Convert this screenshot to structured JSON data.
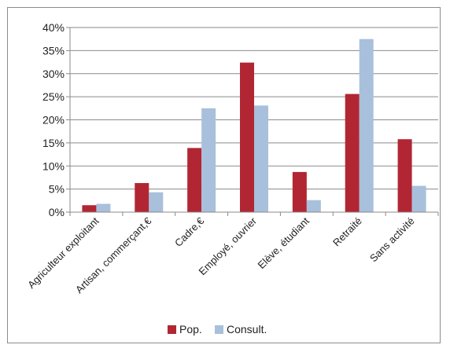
{
  "chart_data": {
    "type": "bar",
    "categories": [
      "Agriculteur exploitant",
      "Artisan, commerçant,€",
      "Cadre,€",
      "Employé, ouvrier",
      "Elève, étudiant",
      "Retraité",
      "Sans activité"
    ],
    "series": [
      {
        "name": "Pop.",
        "color": "#b22633",
        "values": [
          1.5,
          6.3,
          13.9,
          32.4,
          8.7,
          25.6,
          15.8
        ]
      },
      {
        "name": "Consult.",
        "color": "#a8c0db",
        "values": [
          1.8,
          4.3,
          22.5,
          23.1,
          2.6,
          37.5,
          5.7
        ]
      }
    ],
    "ylim": [
      0,
      40
    ],
    "yticks": [
      0,
      5,
      10,
      15,
      20,
      25,
      30,
      35,
      40
    ],
    "ytick_labels": [
      "0%",
      "5%",
      "10%",
      "15%",
      "20%",
      "25%",
      "30%",
      "35%",
      "40%"
    ],
    "grid": true,
    "legend_position": "bottom",
    "title": "",
    "xlabel": "",
    "ylabel": ""
  }
}
